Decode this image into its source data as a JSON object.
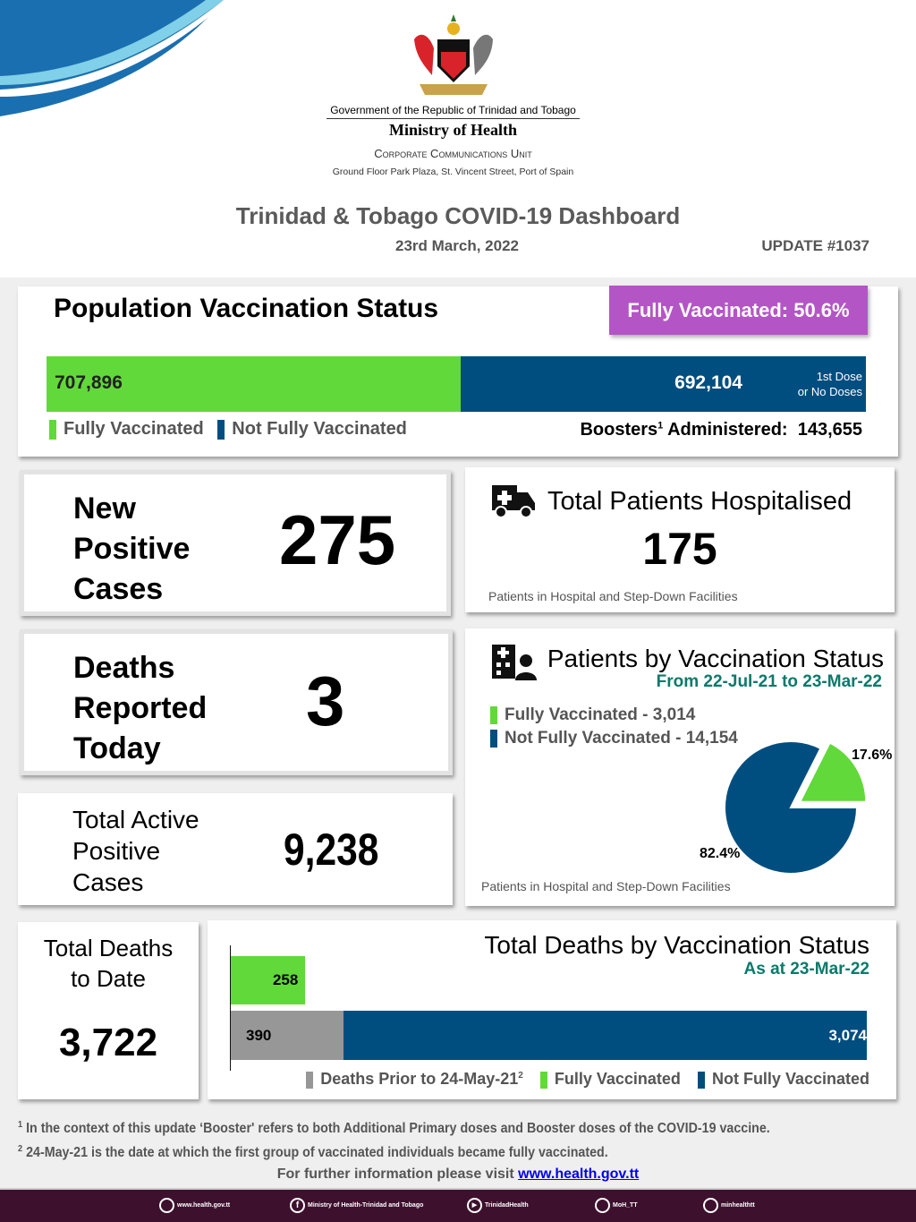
{
  "header": {
    "gov": "Government of the Republic of Trinidad and Tobago",
    "ministry": "Ministry of Health",
    "unit": "Corporate Communications Unit",
    "address": "Ground Floor Park Plaza, St. Vincent Street, Port of Spain",
    "title": "Trinidad & Tobago COVID-19 Dashboard",
    "date": "23rd March, 2022",
    "update": "UPDATE #1037"
  },
  "vaccination": {
    "title": "Population Vaccination Status",
    "badge": "Fully Vaccinated: 50.6%",
    "fully": 707896,
    "fully_label": "707,896",
    "not_fully": 692104,
    "not_fully_label": "692,104",
    "not_fully_note1": "1st Dose",
    "not_fully_note2": "or No Doses",
    "legend_fully": "Fully Vaccinated",
    "legend_not": "Not Fully Vaccinated",
    "boosters_label": "Boosters",
    "boosters_sup": "1",
    "boosters_suffix": " Administered:",
    "boosters_value": "143,655",
    "colors": {
      "fully": "#62d93a",
      "not_fully": "#004e7f",
      "badge": "#b455c6"
    }
  },
  "new_cases": {
    "l1": "New",
    "l2": "Positive",
    "l3": "Cases",
    "value": "275"
  },
  "deaths_today": {
    "l1": "Deaths",
    "l2": "Reported",
    "l3": "Today",
    "value": "3"
  },
  "active": {
    "l1": "Total Active",
    "l2": "Positive",
    "l3": "Cases",
    "value": "9,238"
  },
  "hospitalised": {
    "title": "Total Patients Hospitalised",
    "value": "175",
    "note": "Patients in Hospital and Step-Down Facilities",
    "icon": "ambulance-icon"
  },
  "patients_vax": {
    "title": "Patients by Vaccination Status",
    "subtitle": "From 22-Jul-21 to 23-Mar-22",
    "legend": [
      "Fully Vaccinated - 3,014",
      "Not Fully Vaccinated - 14,154"
    ],
    "note": "Patients in Hospital and Step-Down Facilities",
    "icon": "hospital-patient-icon"
  },
  "total_deaths": {
    "l1": "Total Deaths",
    "l2": "to Date",
    "value": "3,722"
  },
  "chart_data": [
    {
      "type": "pie",
      "title": "Patients by Vaccination Status",
      "subtitle": "From 22-Jul-21 to 23-Mar-22",
      "slices": [
        {
          "name": "Fully Vaccinated",
          "value": 3014,
          "label": "17.6%",
          "color": "#62d93a"
        },
        {
          "name": "Not Fully Vaccinated",
          "value": 14154,
          "label": "82.4%",
          "color": "#004e7f"
        }
      ]
    },
    {
      "type": "bar",
      "orientation": "horizontal",
      "stacked": true,
      "title": "Total Deaths by Vaccination Status",
      "subtitle": "As at 23-Mar-22",
      "series": [
        {
          "name": "Deaths Prior to 24-May-21",
          "sup": "2",
          "values": [
            null,
            390
          ],
          "color": "#979797"
        },
        {
          "name": "Fully Vaccinated",
          "values": [
            258,
            null
          ],
          "color": "#62d93a"
        },
        {
          "name": "Not Fully Vaccinated",
          "values": [
            null,
            3074
          ],
          "color": "#004e7f"
        }
      ],
      "labels": {
        "fully": "258",
        "prior": "390",
        "not_fully": "3,074"
      }
    }
  ],
  "footnotes": [
    "In the context of this update ‘Booster' refers to both Additional Primary doses and Booster doses of the COVID-19 vaccine.",
    "24-May-21 is the date at which the first group of vaccinated individuals became fully vaccinated."
  ],
  "further": {
    "text": "For further information please visit ",
    "link": "www.health.gov.tt"
  },
  "footer": [
    {
      "icon": "web-icon",
      "label": "www.health.gov.tt"
    },
    {
      "icon": "facebook-icon",
      "label": "Ministry of Health-Trinidad and Tobago"
    },
    {
      "icon": "youtube-icon",
      "label": "TrinidadHealth"
    },
    {
      "icon": "twitter-icon",
      "label": "MoH_TT"
    },
    {
      "icon": "instagram-icon",
      "label": "minhealthtt"
    }
  ]
}
